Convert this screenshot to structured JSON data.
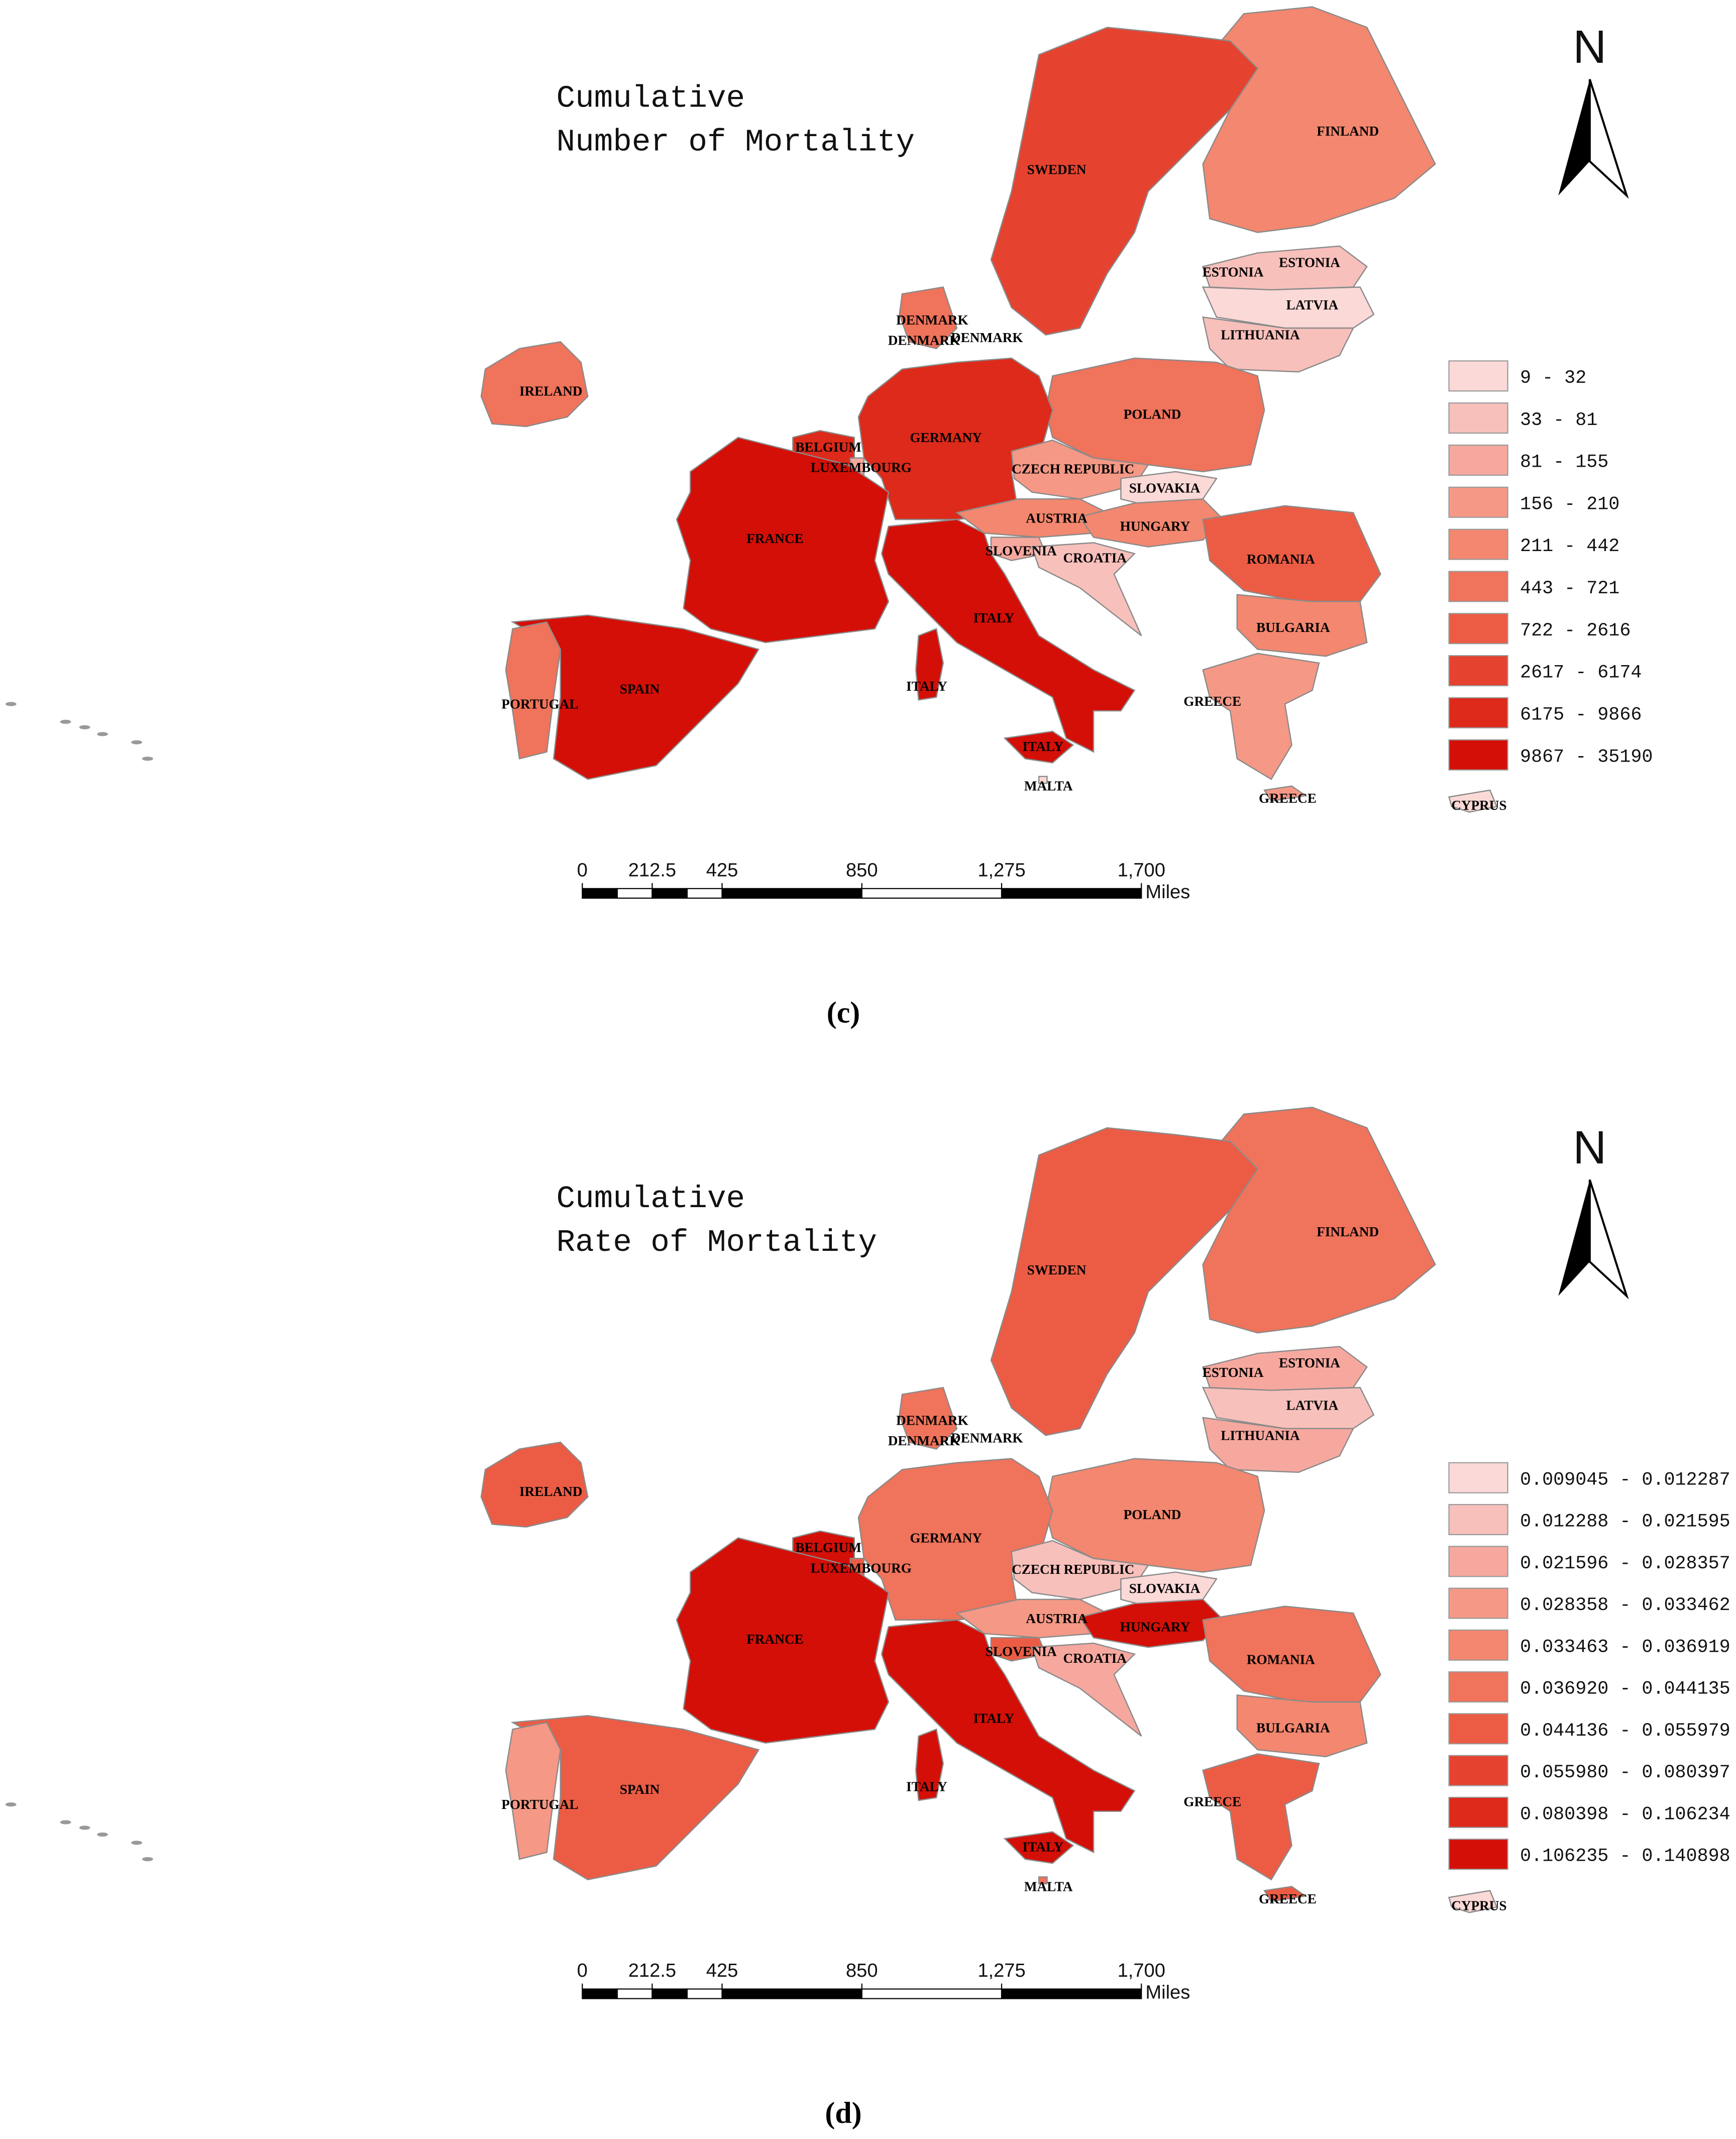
{
  "panels": [
    {
      "title_lines": [
        "Cumulative",
        "Number of Mortality"
      ],
      "north": "N",
      "legend": [
        {
          "label": "9 - 32",
          "color": "#fbd9d7"
        },
        {
          "label": "33 - 81",
          "color": "#f8c0bb"
        },
        {
          "label": "81 - 155",
          "color": "#f6a89f"
        },
        {
          "label": "156 - 210",
          "color": "#f59886"
        },
        {
          "label": "211 - 442",
          "color": "#f3876f"
        },
        {
          "label": "443 - 721",
          "color": "#f0735b"
        },
        {
          "label": "722 - 2616",
          "color": "#ec5c45"
        },
        {
          "label": "2617 - 6174",
          "color": "#e54330"
        },
        {
          "label": "6175 - 9866",
          "color": "#dd2a1a"
        },
        {
          "label": "9867 - 35190",
          "color": "#d40f07"
        }
      ],
      "countries": [
        {
          "labels": [
            "FINLAND"
          ],
          "class": 4
        },
        {
          "labels": [
            "SWEDEN"
          ],
          "class": 7
        },
        {
          "labels": [
            "ESTONIA",
            "ESTONIA"
          ],
          "class": 1
        },
        {
          "labels": [
            "LATVIA"
          ],
          "class": 0
        },
        {
          "labels": [
            "LITHUANIA"
          ],
          "class": 1
        },
        {
          "labels": [
            "POLAND"
          ],
          "class": 5
        },
        {
          "labels": [
            "GERMANY"
          ],
          "class": 8
        },
        {
          "labels": [
            "DENMARK",
            "DENMARK",
            "DENMARK"
          ],
          "class": 5
        },
        {
          "labels": [
            "IRELAND"
          ],
          "class": 5
        },
        {
          "labels": [
            "BELGIUM"
          ],
          "class": 8
        },
        {
          "labels": [
            "LUXEMBOURG"
          ],
          "class": 2
        },
        {
          "labels": [
            "FRANCE"
          ],
          "class": 9
        },
        {
          "labels": [
            "SPAIN"
          ],
          "class": 9
        },
        {
          "labels": [
            "PORTUGAL"
          ],
          "class": 5
        },
        {
          "labels": [
            "ITALY",
            "ITALY",
            "ITALY"
          ],
          "class": 9
        },
        {
          "labels": [
            "CZECH REPUBLIC"
          ],
          "class": 3
        },
        {
          "labels": [
            "SLOVAKIA"
          ],
          "class": 0
        },
        {
          "labels": [
            "AUSTRIA"
          ],
          "class": 4
        },
        {
          "labels": [
            "HUNGARY"
          ],
          "class": 4
        },
        {
          "labels": [
            "SLOVENIA"
          ],
          "class": 2
        },
        {
          "labels": [
            "CROATIA"
          ],
          "class": 1
        },
        {
          "labels": [
            "ROMANIA"
          ],
          "class": 6
        },
        {
          "labels": [
            "BULGARIA"
          ],
          "class": 4
        },
        {
          "labels": [
            "GREECE",
            "GREECE"
          ],
          "class": 3
        },
        {
          "labels": [
            "MALTA"
          ],
          "class": 0
        },
        {
          "labels": [
            "CYPRUS"
          ],
          "class": 0
        }
      ],
      "scale": {
        "lim": [
          0,
          1700
        ],
        "ticks": [
          0,
          212.5,
          425,
          850,
          {
            "value": 1275,
            "label": "1,275"
          },
          {
            "value": 1700,
            "label": "1,700"
          }
        ],
        "unit": "Miles"
      },
      "caption": "(c)"
    },
    {
      "title_lines": [
        "Cumulative",
        "Rate of Mortality"
      ],
      "north": "N",
      "legend": [
        {
          "label": "0.009045 - 0.012287",
          "color": "#fbd9d7"
        },
        {
          "label": "0.012288 - 0.021595",
          "color": "#f8c0bb"
        },
        {
          "label": "0.021596 - 0.028357",
          "color": "#f6a89f"
        },
        {
          "label": "0.028358 - 0.033462",
          "color": "#f59886"
        },
        {
          "label": "0.033463 - 0.036919",
          "color": "#f3876f"
        },
        {
          "label": "0.036920 - 0.044135",
          "color": "#f0735b"
        },
        {
          "label": "0.044136 - 0.055979",
          "color": "#ec5c45"
        },
        {
          "label": "0.055980 - 0.080397",
          "color": "#e54330"
        },
        {
          "label": "0.080398 - 0.106234",
          "color": "#dd2a1a"
        },
        {
          "label": "0.106235 - 0.140898",
          "color": "#d40f07"
        }
      ],
      "countries": [
        {
          "labels": [
            "FINLAND"
          ],
          "class": 5
        },
        {
          "labels": [
            "SWEDEN"
          ],
          "class": 6
        },
        {
          "labels": [
            "ESTONIA",
            "ESTONIA"
          ],
          "class": 2
        },
        {
          "labels": [
            "LATVIA"
          ],
          "class": 1
        },
        {
          "labels": [
            "LITHUANIA"
          ],
          "class": 2
        },
        {
          "labels": [
            "POLAND"
          ],
          "class": 4
        },
        {
          "labels": [
            "GERMANY"
          ],
          "class": 5
        },
        {
          "labels": [
            "DENMARK",
            "DENMARK",
            "DENMARK"
          ],
          "class": 5
        },
        {
          "labels": [
            "IRELAND"
          ],
          "class": 6
        },
        {
          "labels": [
            "BELGIUM"
          ],
          "class": 9
        },
        {
          "labels": [
            "LUXEMBOURG"
          ],
          "class": 6
        },
        {
          "labels": [
            "FRANCE"
          ],
          "class": 9
        },
        {
          "labels": [
            "SPAIN"
          ],
          "class": 6
        },
        {
          "labels": [
            "PORTUGAL"
          ],
          "class": 3
        },
        {
          "labels": [
            "ITALY",
            "ITALY",
            "ITALY"
          ],
          "class": 9
        },
        {
          "labels": [
            "CZECH REPUBLIC"
          ],
          "class": 1
        },
        {
          "labels": [
            "SLOVAKIA"
          ],
          "class": 0
        },
        {
          "labels": [
            "AUSTRIA"
          ],
          "class": 3
        },
        {
          "labels": [
            "HUNGARY"
          ],
          "class": 9
        },
        {
          "labels": [
            "SLOVENIA"
          ],
          "class": 6
        },
        {
          "labels": [
            "CROATIA"
          ],
          "class": 2
        },
        {
          "labels": [
            "ROMANIA"
          ],
          "class": 5
        },
        {
          "labels": [
            "BULGARIA"
          ],
          "class": 4
        },
        {
          "labels": [
            "GREECE",
            "GREECE"
          ],
          "class": 6
        },
        {
          "labels": [
            "MALTA"
          ],
          "class": 5
        },
        {
          "labels": [
            "CYPRUS"
          ],
          "class": 0
        }
      ],
      "scale": {
        "lim": [
          0,
          1700
        ],
        "ticks": [
          0,
          212.5,
          425,
          850,
          {
            "value": 1275,
            "label": "1,275"
          },
          {
            "value": 1700,
            "label": "1,700"
          }
        ],
        "unit": "Miles"
      },
      "caption": "(d)"
    }
  ]
}
